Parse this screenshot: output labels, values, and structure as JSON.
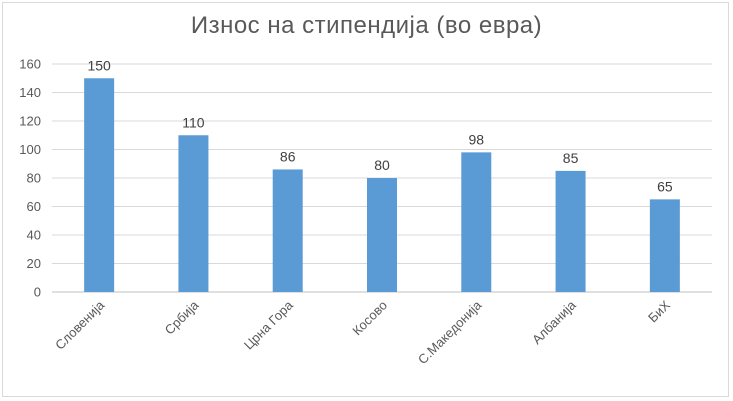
{
  "chart_data": {
    "type": "bar",
    "title": "Износ на стипендија (во евра)",
    "categories": [
      "Словенија",
      "Србија",
      "Црна Гора",
      "Косово",
      "С.Македонија",
      "Албанија",
      "БиХ"
    ],
    "values": [
      150,
      110,
      86,
      80,
      98,
      85,
      65
    ],
    "ylim": [
      0,
      160
    ],
    "yticks": [
      0,
      20,
      40,
      60,
      80,
      100,
      120,
      140,
      160
    ],
    "grid": true,
    "legend": "none",
    "bar_color": "#5b9bd5"
  }
}
